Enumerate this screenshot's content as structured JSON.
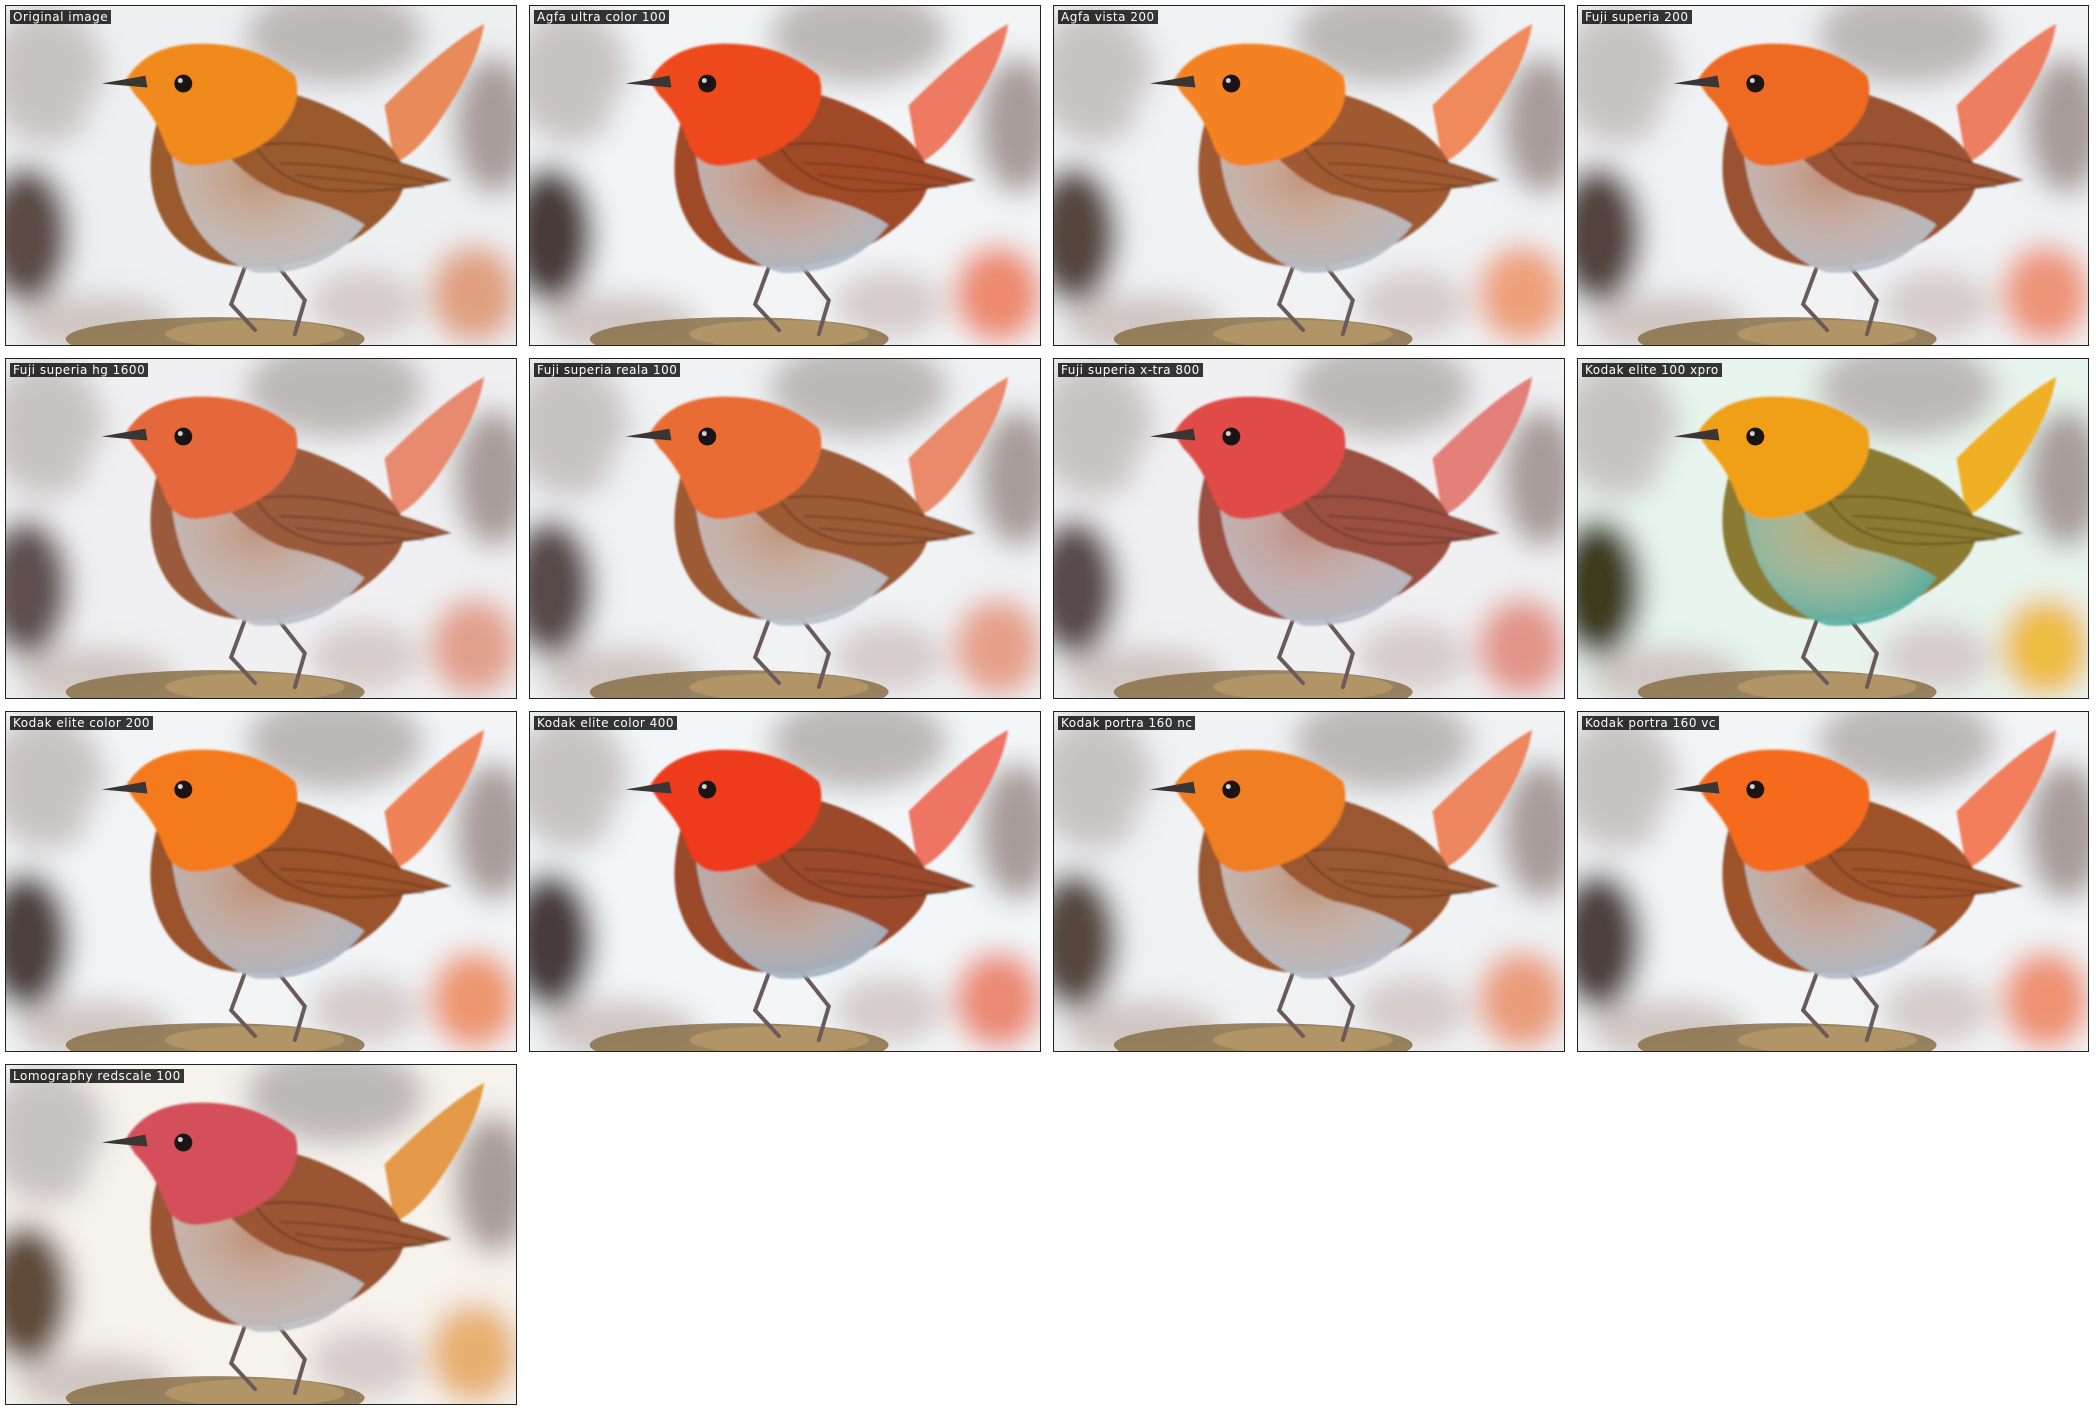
{
  "tiles": [
    {
      "label": "Original image",
      "palette": {
        "head": "#f08a1e",
        "breast": "#b8bcc4",
        "wing": "#9a5a2e",
        "tail": "#e88a5a",
        "bg_light": "#eef0f2",
        "bg_dark": "#5a4a44",
        "bg_warm": "#e0a080"
      }
    },
    {
      "label": "Agfa ultra color 100",
      "palette": {
        "head": "#ee4a1a",
        "breast": "#a8b4c0",
        "wing": "#a04a26",
        "tail": "#ee7a62",
        "bg_light": "#f2f4f6",
        "bg_dark": "#4a3a38",
        "bg_warm": "#ee8a70"
      }
    },
    {
      "label": "Agfa vista 200",
      "palette": {
        "head": "#f58220",
        "breast": "#b0b6c0",
        "wing": "#a05a30",
        "tail": "#f08a5c",
        "bg_light": "#f0f2f4",
        "bg_dark": "#54443e",
        "bg_warm": "#eea07a"
      }
    },
    {
      "label": "Fuji superia 200",
      "palette": {
        "head": "#ee6a24",
        "breast": "#b2b8c2",
        "wing": "#9a5230",
        "tail": "#ee7e60",
        "bg_light": "#f0f2f4",
        "bg_dark": "#52423e",
        "bg_warm": "#ee9478"
      }
    },
    {
      "label": "Fuji superia hg 1600",
      "palette": {
        "head": "#e4683a",
        "breast": "#b6bac4",
        "wing": "#9a5a3a",
        "tail": "#e88a70",
        "bg_light": "#f0f0f2",
        "bg_dark": "#5e5050",
        "bg_warm": "#e2a08c"
      }
    },
    {
      "label": "Fuji superia reala 100",
      "palette": {
        "head": "#ea6c36",
        "breast": "#b4bac4",
        "wing": "#9c5a36",
        "tail": "#ea8a6a",
        "bg_light": "#f0f2f4",
        "bg_dark": "#58484a",
        "bg_warm": "#e6a08a"
      }
    },
    {
      "label": "Fuji superia x-tra 800",
      "palette": {
        "head": "#e04c46",
        "breast": "#b0b6c2",
        "wing": "#9a5040",
        "tail": "#e4807a",
        "bg_light": "#f0f0f2",
        "bg_dark": "#584a4c",
        "bg_warm": "#e29488"
      }
    },
    {
      "label": "Kodak elite 100 xpro",
      "palette": {
        "head": "#f0a018",
        "breast": "#4aa89a",
        "wing": "#8a7a30",
        "tail": "#f0b028",
        "bg_light": "#e8f4ee",
        "bg_dark": "#3e3a1e",
        "bg_warm": "#eebc40"
      }
    },
    {
      "label": "Kodak elite color 200",
      "palette": {
        "head": "#f57a1c",
        "breast": "#a8b2c0",
        "wing": "#9a522c",
        "tail": "#f08258",
        "bg_light": "#f2f4f6",
        "bg_dark": "#4e403c",
        "bg_warm": "#ee9670"
      }
    },
    {
      "label": "Kodak elite color 400",
      "palette": {
        "head": "#ee3a1c",
        "breast": "#9aacbc",
        "wing": "#9a4a2c",
        "tail": "#ee7464",
        "bg_light": "#f2f6f8",
        "bg_dark": "#463a3c",
        "bg_warm": "#ec8a74"
      }
    },
    {
      "label": "Kodak portra 160 nc",
      "palette": {
        "head": "#f07e22",
        "breast": "#b0b8c4",
        "wing": "#9a5830",
        "tail": "#ee865e",
        "bg_light": "#f0f2f4",
        "bg_dark": "#54463e",
        "bg_warm": "#ea9c7a"
      }
    },
    {
      "label": "Kodak portra 160 vc",
      "palette": {
        "head": "#f56a1e",
        "breast": "#a8b4c2",
        "wing": "#9e522c",
        "tail": "#f27e5c",
        "bg_light": "#f2f4f6",
        "bg_dark": "#4e403c",
        "bg_warm": "#ee9272"
      }
    },
    {
      "label": "Lomography redscale 100",
      "palette": {
        "head": "#d4505a",
        "breast": "#b8b8bc",
        "wing": "#9a5430",
        "tail": "#e49a4a",
        "bg_light": "#f6f2ec",
        "bg_dark": "#5e4a38",
        "bg_warm": "#e8b070"
      }
    }
  ]
}
